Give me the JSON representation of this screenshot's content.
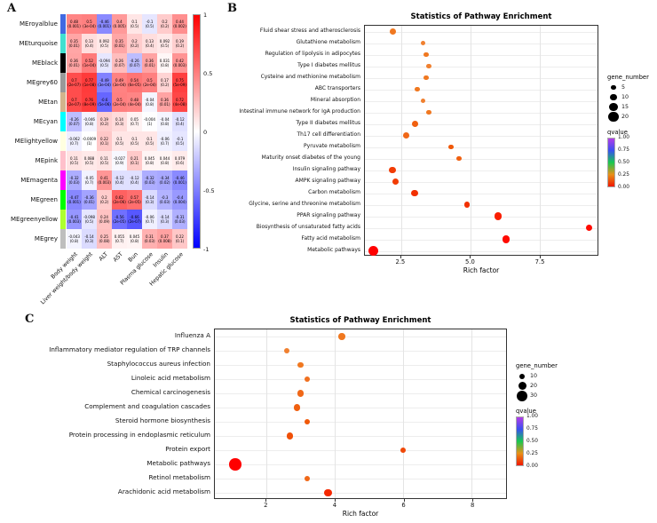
{
  "panel_labels": {
    "a": "A",
    "b": "B",
    "c": "C"
  },
  "chart_data": [
    {
      "id": "heatmap",
      "type": "heatmap",
      "columns": [
        "Body weight",
        "Liver weight/body weight",
        "ALT",
        "AST",
        "Bun",
        "Plasma glucose",
        "Insulin",
        "Hepatic glucose"
      ],
      "colorbar_ticks": [
        "1",
        "0.5",
        "0",
        "-0.5",
        "-1"
      ],
      "value_range": [
        -1,
        1
      ],
      "rows": [
        {
          "name": "MEroyalblue",
          "color": "#4169E1",
          "cells": [
            {
              "cor": 0.48,
              "p": "0.001"
            },
            {
              "cor": 0.5,
              "p": "3e-04"
            },
            {
              "cor": -0.46,
              "p": "0.001"
            },
            {
              "cor": 0.4,
              "p": "0.005"
            },
            {
              "cor": 0.1,
              "p": "0.5"
            },
            {
              "cor": -0.1,
              "p": "0.5"
            },
            {
              "cor": 0.2,
              "p": "0.2"
            },
            {
              "cor": 0.44,
              "p": "0.002"
            }
          ]
        },
        {
          "name": "MEturquoise",
          "color": "#40E0D0",
          "cells": [
            {
              "cor": 0.35,
              "p": "0.01"
            },
            {
              "cor": 0.13,
              "p": "0.4"
            },
            {
              "cor": 0.092,
              "p": "0.5"
            },
            {
              "cor": 0.35,
              "p": "0.01"
            },
            {
              "cor": 0.2,
              "p": "0.2"
            },
            {
              "cor": 0.13,
              "p": "0.4"
            },
            {
              "cor": 0.092,
              "p": "0.5"
            },
            {
              "cor": 0.19,
              "p": "0.2"
            }
          ]
        },
        {
          "name": "MEblack",
          "color": "#000000",
          "cells": [
            {
              "cor": 0.36,
              "p": "0.01"
            },
            {
              "cor": 0.52,
              "p": "1e-04"
            },
            {
              "cor": -0.094,
              "p": "0.5"
            },
            {
              "cor": 0.26,
              "p": "0.07"
            },
            {
              "cor": -0.26,
              "p": "0.07"
            },
            {
              "cor": 0.36,
              "p": "0.01"
            },
            {
              "cor": 0.031,
              "p": "0.8"
            },
            {
              "cor": 0.42,
              "p": "0.003"
            }
          ]
        },
        {
          "name": "MEgrey60",
          "color": "#999999",
          "cells": [
            {
              "cor": 0.7,
              "p": "2e-07"
            },
            {
              "cor": 0.77,
              "p": "1e-08"
            },
            {
              "cor": -0.49,
              "p": "3e-04"
            },
            {
              "cor": 0.49,
              "p": "3e-04"
            },
            {
              "cor": 0.54,
              "p": "6e-05"
            },
            {
              "cor": 0.5,
              "p": "2e-04"
            },
            {
              "cor": 0.17,
              "p": "0.2"
            },
            {
              "cor": 0.75,
              "p": "5e-09"
            }
          ]
        },
        {
          "name": "MEtan",
          "color": "#D2B48C",
          "cells": [
            {
              "cor": 0.7,
              "p": "2e-07"
            },
            {
              "cor": 0.76,
              "p": "8e-09"
            },
            {
              "cor": -0.6,
              "p": "5e-06"
            },
            {
              "cor": 0.5,
              "p": "2e-04"
            },
            {
              "cor": 0.48,
              "p": "4e-04"
            },
            {
              "cor": -0.04,
              "p": "0.8"
            },
            {
              "cor": 0.36,
              "p": "0.01"
            },
            {
              "cor": 0.72,
              "p": "4e-08"
            }
          ]
        },
        {
          "name": "MEcyan",
          "color": "#00FFFF",
          "cells": [
            {
              "cor": -0.26,
              "p": "0.07"
            },
            {
              "cor": -0.046,
              "p": "0.8"
            },
            {
              "cor": 0.19,
              "p": "0.2"
            },
            {
              "cor": 0.14,
              "p": "0.3"
            },
            {
              "cor": 0.05,
              "p": "0.7"
            },
            {
              "cor": -0.004,
              "p": "1"
            },
            {
              "cor": -0.04,
              "p": "0.8"
            },
            {
              "cor": -0.12,
              "p": "0.4"
            }
          ]
        },
        {
          "name": "MElightyellow",
          "color": "#FFFFE0",
          "cells": [
            {
              "cor": -0.062,
              "p": "0.7"
            },
            {
              "cor": -0.0009,
              "p": "1"
            },
            {
              "cor": 0.22,
              "p": "0.1"
            },
            {
              "cor": 0.1,
              "p": "0.5"
            },
            {
              "cor": 0.1,
              "p": "0.5"
            },
            {
              "cor": 0.1,
              "p": "0.5"
            },
            {
              "cor": -0.06,
              "p": "0.7"
            },
            {
              "cor": -0.1,
              "p": "0.5"
            }
          ]
        },
        {
          "name": "MEpink",
          "color": "#FFC0CB",
          "cells": [
            {
              "cor": 0.11,
              "p": "0.5"
            },
            {
              "cor": 0.088,
              "p": "0.5"
            },
            {
              "cor": 0.11,
              "p": "0.5"
            },
            {
              "cor": -0.027,
              "p": "0.9"
            },
            {
              "cor": 0.21,
              "p": "0.1"
            },
            {
              "cor": 0.045,
              "p": "0.8"
            },
            {
              "cor": 0.044,
              "p": "0.8"
            },
            {
              "cor": 0.079,
              "p": "0.6"
            }
          ]
        },
        {
          "name": "MEmagenta",
          "color": "#FF00FF",
          "cells": [
            {
              "cor": -0.32,
              "p": "0.03"
            },
            {
              "cor": -0.05,
              "p": "0.7"
            },
            {
              "cor": 0.41,
              "p": "0.003"
            },
            {
              "cor": -0.12,
              "p": "0.4"
            },
            {
              "cor": -0.12,
              "p": "0.4"
            },
            {
              "cor": -0.32,
              "p": "0.03"
            },
            {
              "cor": -0.34,
              "p": "0.02"
            },
            {
              "cor": -0.46,
              "p": "0.001"
            }
          ]
        },
        {
          "name": "MEgreen",
          "color": "#00FF00",
          "cells": [
            {
              "cor": -0.47,
              "p": "0.001"
            },
            {
              "cor": -0.36,
              "p": "0.01"
            },
            {
              "cor": 0.2,
              "p": "0.2"
            },
            {
              "cor": 0.62,
              "p": "2e-06"
            },
            {
              "cor": 0.57,
              "p": "2e-05"
            },
            {
              "cor": -0.14,
              "p": "0.3"
            },
            {
              "cor": -0.3,
              "p": "0.03"
            },
            {
              "cor": -0.4,
              "p": "0.004"
            }
          ]
        },
        {
          "name": "MEgreenyellow",
          "color": "#ADFF2F",
          "cells": [
            {
              "cor": -0.41,
              "p": "0.003"
            },
            {
              "cor": -0.098,
              "p": "0.5"
            },
            {
              "cor": 0.24,
              "p": "0.09"
            },
            {
              "cor": -0.56,
              "p": "2e-05"
            },
            {
              "cor": -0.66,
              "p": "2e-07"
            },
            {
              "cor": -0.06,
              "p": "0.7"
            },
            {
              "cor": -0.14,
              "p": "0.3"
            },
            {
              "cor": -0.31,
              "p": "0.03"
            }
          ]
        },
        {
          "name": "MEgrey",
          "color": "#BEBEBE",
          "cells": [
            {
              "cor": -0.043,
              "p": "0.8"
            },
            {
              "cor": -0.14,
              "p": "0.3"
            },
            {
              "cor": 0.25,
              "p": "0.08"
            },
            {
              "cor": 0.055,
              "p": "0.7"
            },
            {
              "cor": 0.045,
              "p": "0.8"
            },
            {
              "cor": 0.31,
              "p": "0.03"
            },
            {
              "cor": 0.37,
              "p": "0.008"
            },
            {
              "cor": 0.22,
              "p": "0.1"
            }
          ]
        }
      ]
    },
    {
      "id": "plot_b",
      "type": "scatter",
      "title": "Statistics of Pathway Enrichment",
      "xlabel": "Rich factor",
      "x_ticks": [
        "2.5",
        "5.0",
        "7.5"
      ],
      "x_tick_values": [
        2.5,
        5.0,
        7.5
      ],
      "xlim": [
        1.2,
        9.6
      ],
      "legend": {
        "size_title": "gene_number",
        "sizes": [
          5,
          10,
          15,
          20
        ],
        "q_title": "qvalue",
        "q_labels": [
          "1.00",
          "0.75",
          "0.50",
          "0.25",
          "0.00"
        ],
        "q_gradient": [
          "#B43CE8",
          "#3850F0",
          "#18C850",
          "#E89018",
          "#F01800"
        ]
      },
      "points": [
        {
          "pathway": "Fluid shear stress and atherosclerosis",
          "rich_factor": 2.2,
          "gene_number": 8,
          "qvalue": 0.2,
          "color": "#F07820"
        },
        {
          "pathway": "Glutathione metabolism",
          "rich_factor": 3.3,
          "gene_number": 5,
          "qvalue": 0.25,
          "color": "#F08030"
        },
        {
          "pathway": "Regulation of lipolysis in adipocytes",
          "rich_factor": 3.4,
          "gene_number": 5,
          "qvalue": 0.22,
          "color": "#F07820"
        },
        {
          "pathway": "Type I diabetes mellitus",
          "rich_factor": 3.5,
          "gene_number": 5,
          "qvalue": 0.28,
          "color": "#F08030"
        },
        {
          "pathway": "Cysteine and methionine metabolism",
          "rich_factor": 3.4,
          "gene_number": 5,
          "qvalue": 0.22,
          "color": "#F07820"
        },
        {
          "pathway": "ABC transporters",
          "rich_factor": 3.1,
          "gene_number": 5,
          "qvalue": 0.24,
          "color": "#F07820"
        },
        {
          "pathway": "Mineral absorption",
          "rich_factor": 3.3,
          "gene_number": 5,
          "qvalue": 0.3,
          "color": "#F08030"
        },
        {
          "pathway": "Intestinal immune network for IgA production",
          "rich_factor": 3.5,
          "gene_number": 5,
          "qvalue": 0.26,
          "color": "#F07820"
        },
        {
          "pathway": "Type II diabetes mellitus",
          "rich_factor": 3.0,
          "gene_number": 8,
          "qvalue": 0.15,
          "color": "#F06010"
        },
        {
          "pathway": "Th17 cell differentiation",
          "rich_factor": 2.7,
          "gene_number": 8,
          "qvalue": 0.18,
          "color": "#F06818"
        },
        {
          "pathway": "Pyruvate metabolism",
          "rich_factor": 4.3,
          "gene_number": 5,
          "qvalue": 0.12,
          "color": "#F05808"
        },
        {
          "pathway": "Maturity onset diabetes of the young",
          "rich_factor": 4.6,
          "gene_number": 5,
          "qvalue": 0.15,
          "color": "#F06010"
        },
        {
          "pathway": "Insulin signaling pathway",
          "rich_factor": 2.2,
          "gene_number": 10,
          "qvalue": 0.05,
          "color": "#F23C05"
        },
        {
          "pathway": "AMPK signaling pathway",
          "rich_factor": 2.3,
          "gene_number": 10,
          "qvalue": 0.05,
          "color": "#F23C05"
        },
        {
          "pathway": "Carbon metabolism",
          "rich_factor": 3.0,
          "gene_number": 10,
          "qvalue": 0.04,
          "color": "#F23000"
        },
        {
          "pathway": "Glycine, serine and threonine metabolism",
          "rich_factor": 4.9,
          "gene_number": 6,
          "qvalue": 0.04,
          "color": "#F23000"
        },
        {
          "pathway": "PPAR signaling pathway",
          "rich_factor": 6.0,
          "gene_number": 12,
          "qvalue": 0.01,
          "color": "#FA1E00"
        },
        {
          "pathway": "Biosynthesis of unsaturated fatty acids",
          "rich_factor": 9.3,
          "gene_number": 10,
          "qvalue": 0.0,
          "color": "#FF0A00"
        },
        {
          "pathway": "Fatty acid metabolism",
          "rich_factor": 6.3,
          "gene_number": 12,
          "qvalue": 0.0,
          "color": "#FF0A00"
        },
        {
          "pathway": "Metabolic pathways",
          "rich_factor": 1.5,
          "gene_number": 20,
          "qvalue": 0.0,
          "color": "#FF0000"
        }
      ]
    },
    {
      "id": "plot_c",
      "type": "scatter",
      "title": "Statistics of Pathway Enrichment",
      "xlabel": "Rich factor",
      "x_ticks": [
        "2",
        "4",
        "6",
        "8"
      ],
      "x_tick_values": [
        2,
        4,
        6,
        8
      ],
      "xlim": [
        0.5,
        9.0
      ],
      "legend": {
        "size_title": "gene_number",
        "sizes": [
          10,
          20,
          30
        ],
        "q_title": "qvalue",
        "q_labels": [
          "1.00",
          "0.75",
          "0.50",
          "0.25",
          "0.00"
        ],
        "q_gradient": [
          "#B43CE8",
          "#3850F0",
          "#18C850",
          "#E89018",
          "#F01800"
        ]
      },
      "points": [
        {
          "pathway": "Influenza A",
          "rich_factor": 4.2,
          "gene_number": 15,
          "qvalue": 0.3,
          "color": "#F07820"
        },
        {
          "pathway": "Inflammatory mediator regulation of TRP channels",
          "rich_factor": 2.6,
          "gene_number": 12,
          "qvalue": 0.35,
          "color": "#F08030"
        },
        {
          "pathway": "Staphylococcus aureus infection",
          "rich_factor": 3.0,
          "gene_number": 12,
          "qvalue": 0.3,
          "color": "#F07820"
        },
        {
          "pathway": "Linoleic acid metabolism",
          "rich_factor": 3.2,
          "gene_number": 10,
          "qvalue": 0.25,
          "color": "#F07020"
        },
        {
          "pathway": "Chemical carcinogenesis",
          "rich_factor": 3.0,
          "gene_number": 14,
          "qvalue": 0.2,
          "color": "#F06818"
        },
        {
          "pathway": "Complement and coagulation cascades",
          "rich_factor": 2.9,
          "gene_number": 14,
          "qvalue": 0.18,
          "color": "#F06010"
        },
        {
          "pathway": "Steroid hormone biosynthesis",
          "rich_factor": 3.2,
          "gene_number": 12,
          "qvalue": 0.15,
          "color": "#F05808"
        },
        {
          "pathway": "Protein processing in endoplasmic reticulum",
          "rich_factor": 2.7,
          "gene_number": 14,
          "qvalue": 0.12,
          "color": "#F05008"
        },
        {
          "pathway": "Protein export",
          "rich_factor": 6.0,
          "gene_number": 10,
          "qvalue": 0.1,
          "color": "#F04808"
        },
        {
          "pathway": "Metabolic pathways",
          "rich_factor": 1.1,
          "gene_number": 35,
          "qvalue": 0.0,
          "color": "#FF0000"
        },
        {
          "pathway": "Retinol metabolism",
          "rich_factor": 3.2,
          "gene_number": 12,
          "qvalue": 0.2,
          "color": "#F06818"
        },
        {
          "pathway": "Arachidonic acid metabolism",
          "rich_factor": 3.8,
          "gene_number": 18,
          "qvalue": 0.02,
          "color": "#F52800"
        }
      ]
    }
  ]
}
